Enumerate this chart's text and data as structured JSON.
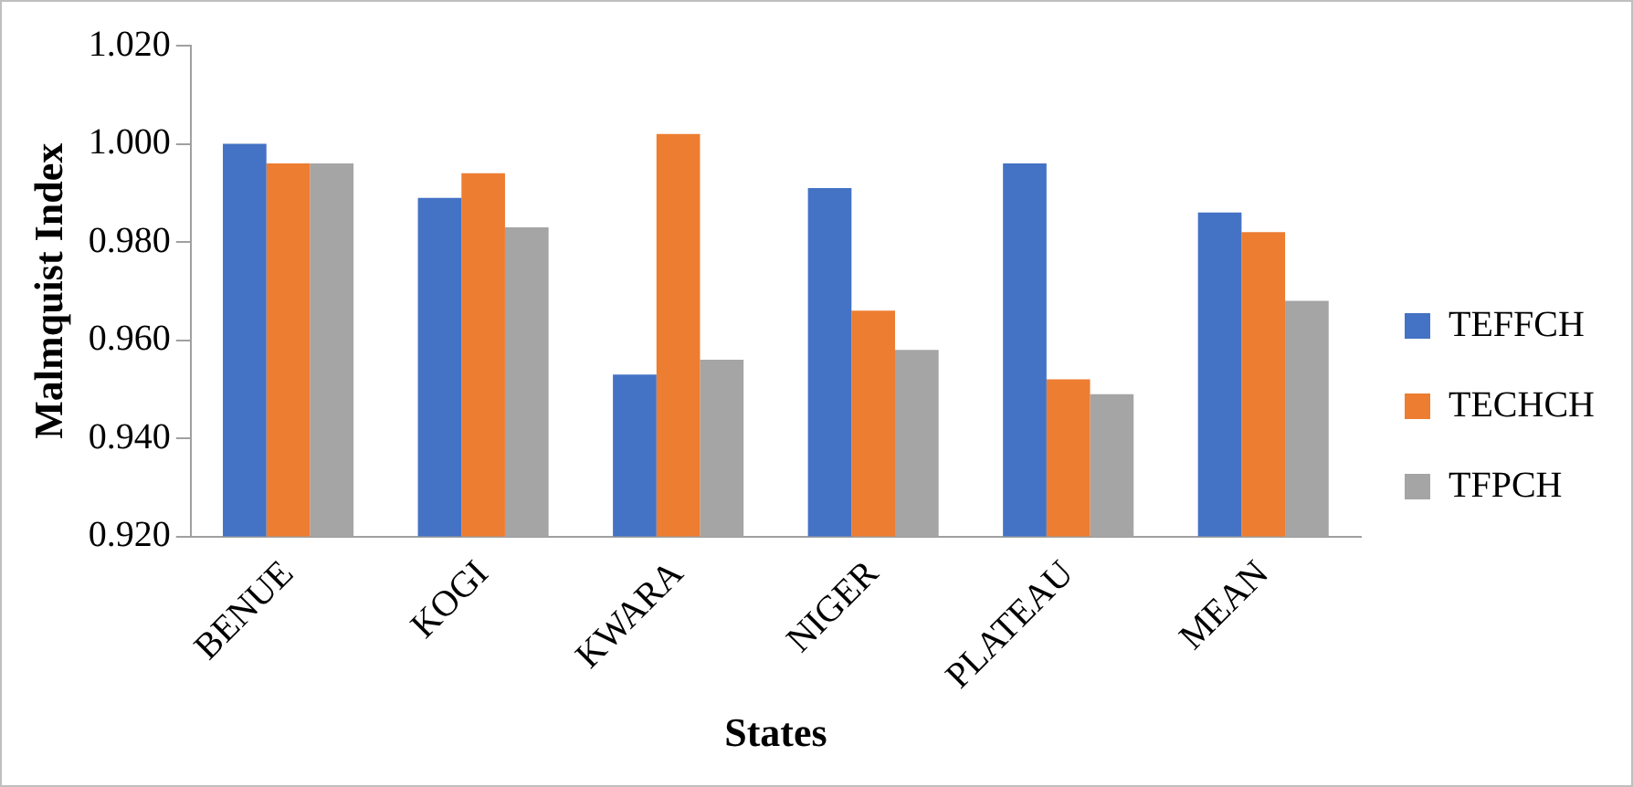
{
  "chart_data": {
    "type": "bar",
    "xlabel": "States",
    "ylabel": "Malmquist Index",
    "categories": [
      "BENUE",
      "KOGI",
      "KWARA",
      "NIGER",
      "PLATEAU",
      "MEAN"
    ],
    "series": [
      {
        "name": "TEFFCH",
        "color": "#4472c4",
        "values": [
          1.0,
          0.989,
          0.953,
          0.991,
          0.996,
          0.986
        ]
      },
      {
        "name": "TECHCH",
        "color": "#ed7d31",
        "values": [
          0.996,
          0.994,
          1.002,
          0.966,
          0.952,
          0.982
        ]
      },
      {
        "name": "TFPCH",
        "color": "#a5a5a5",
        "values": [
          0.996,
          0.983,
          0.956,
          0.958,
          0.949,
          0.968
        ]
      }
    ],
    "ylim": [
      0.92,
      1.02
    ],
    "yticks": [
      {
        "value": 0.92,
        "label": "0.920"
      },
      {
        "value": 0.94,
        "label": "0.940"
      },
      {
        "value": 0.96,
        "label": "0.960"
      },
      {
        "value": 0.98,
        "label": "0.980"
      },
      {
        "value": 1.0,
        "label": "1.000"
      },
      {
        "value": 1.02,
        "label": "1.020"
      }
    ],
    "grid": false,
    "legend": "right"
  }
}
